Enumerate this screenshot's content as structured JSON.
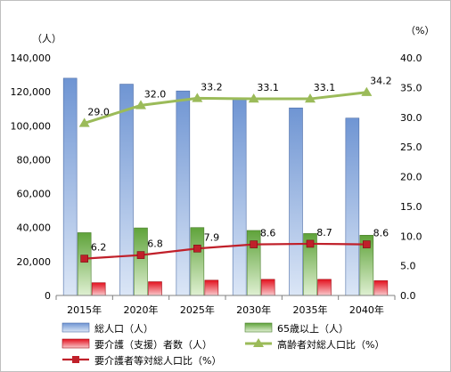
{
  "chart_data": {
    "type": "bar",
    "categories": [
      "2015年",
      "2020年",
      "2025年",
      "2030年",
      "2035年",
      "2040年"
    ],
    "left_axis": {
      "unit": "（人）",
      "min": 0,
      "max": 140000,
      "step": 20000,
      "tick_labels": [
        "0",
        "20,000",
        "40,000",
        "60,000",
        "80,000",
        "100,000",
        "120,000",
        "140,000"
      ]
    },
    "right_axis": {
      "unit": "（%）",
      "min": 0,
      "max": 40,
      "step": 5,
      "tick_labels": [
        "0.0",
        "5.0",
        "10.0",
        "15.0",
        "20.0",
        "25.0",
        "30.0",
        "35.0",
        "40.0"
      ]
    },
    "series": [
      {
        "name": "総人口（人）",
        "type": "bar",
        "axis": "left",
        "color": "#94b3e0",
        "values": [
          128000,
          124500,
          120500,
          116000,
          110500,
          104500
        ]
      },
      {
        "name": "65歳以上（人）",
        "type": "bar",
        "axis": "left",
        "color": "#7fbd5a",
        "values": [
          37000,
          39800,
          40000,
          38300,
          36500,
          35500
        ]
      },
      {
        "name": "要介護（支援）者数（人）",
        "type": "bar",
        "axis": "left",
        "color": "#e0202a",
        "values": [
          7500,
          8100,
          9000,
          9500,
          9500,
          8700
        ]
      },
      {
        "name": "高齢者対総人口比（%）",
        "type": "line",
        "axis": "right",
        "color": "#9bbb59",
        "marker": "triangle",
        "values": [
          29.0,
          32.0,
          33.2,
          33.1,
          33.1,
          34.2
        ],
        "labels": [
          "29.0",
          "32.0",
          "33.2",
          "33.1",
          "33.1",
          "34.2"
        ]
      },
      {
        "name": "要介護者等対総人口比（%）",
        "type": "line",
        "axis": "right",
        "color": "#c0202a",
        "marker": "square",
        "values": [
          6.2,
          6.8,
          7.9,
          8.6,
          8.7,
          8.6
        ],
        "labels": [
          "6.2",
          "6.8",
          "7.9",
          "8.6",
          "8.7",
          "8.6"
        ]
      }
    ],
    "grid": false,
    "legend_position": "bottom"
  }
}
